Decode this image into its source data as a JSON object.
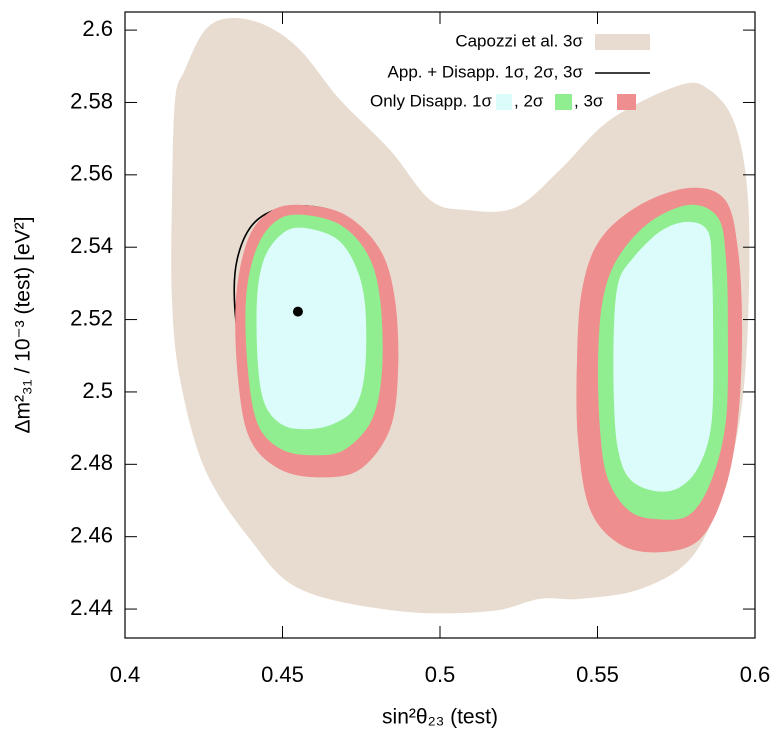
{
  "chart_data": {
    "type": "contour",
    "xlabel": "sin²θ₂₃ (test)",
    "ylabel": "Δm²₃₁ / 10⁻³ (test) [eV²]",
    "xlim": [
      0.4,
      0.6
    ],
    "ylim": [
      2.432,
      2.605
    ],
    "xticks": [
      0.4,
      0.45,
      0.5,
      0.55,
      0.6
    ],
    "yticks": [
      2.44,
      2.46,
      2.48,
      2.5,
      2.52,
      2.54,
      2.56,
      2.58,
      2.6
    ],
    "legend": "top-right",
    "series": [
      {
        "name": "Capozzi et al. 3σ",
        "color": "#e8dcd0",
        "kind": "area",
        "regions": [
          {
            "x": [
              0.4159,
              0.419,
              0.4254,
              0.4333,
              0.4444,
              0.4556,
              0.4683,
              0.4841,
              0.4968,
              0.5079,
              0.5238,
              0.5381,
              0.554,
              0.5762,
              0.5857,
              0.5937,
              0.5978,
              0.5978,
              0.5952,
              0.5889,
              0.5794,
              0.5635,
              0.5444,
              0.5317,
              0.5159,
              0.4873,
              0.4556,
              0.4397,
              0.4254,
              0.4175,
              0.4149,
              0.4149
            ],
            "y": [
              2.5807,
              2.589,
              2.6,
              2.6033,
              2.6014,
              2.5945,
              2.5807,
              2.5669,
              2.5531,
              2.5503,
              2.5509,
              2.5614,
              2.5752,
              2.5848,
              2.5834,
              2.5738,
              2.5531,
              2.52,
              2.4924,
              2.4703,
              2.4538,
              2.4455,
              2.4428,
              2.4428,
              2.4394,
              2.4394,
              2.4455,
              2.4593,
              2.4786,
              2.5034,
              2.5255,
              2.5531
            ]
          }
        ]
      },
      {
        "name": "App. + Disapp. 1σ, 2σ, 3σ",
        "color": "#000000",
        "kind": "line",
        "regions": [
          {
            "x": [
              0.4524,
              0.4667,
              0.4771,
              0.4819,
              0.4825,
              0.4784,
              0.4683,
              0.4556,
              0.4444,
              0.4381,
              0.4349,
              0.4356,
              0.4413
            ],
            "y": [
              2.5512,
              2.5498,
              2.5421,
              2.5283,
              2.5145,
              2.5021,
              2.4946,
              2.493,
              2.4966,
              2.5062,
              2.5228,
              2.5366,
              2.547
            ]
          },
          {
            "x": [
              0.454,
              0.4667,
              0.474,
              0.4771,
              0.4765,
              0.4721,
              0.4625,
              0.4524,
              0.4435,
              0.4397,
              0.439,
              0.4422,
              0.4476
            ],
            "y": [
              2.547,
              2.5448,
              2.5371,
              2.5255,
              2.5117,
              2.5021,
              2.4993,
              2.5007,
              2.5062,
              2.5172,
              2.531,
              2.5407,
              2.5454
            ]
          },
          {
            "x": [
              0.4556,
              0.4651,
              0.4708,
              0.473,
              0.4714,
              0.4667,
              0.4587,
              0.4508,
              0.4444,
              0.4413,
              0.4413,
              0.4444,
              0.4492
            ],
            "y": [
              2.5426,
              2.5404,
              2.5332,
              2.5228,
              2.5117,
              2.504,
              2.5021,
              2.504,
              2.5103,
              2.52,
              2.531,
              2.5379,
              2.5415
            ]
          }
        ]
      },
      {
        "name": ", 3σ",
        "color": "#ef8e8e",
        "kind": "area",
        "regions": [
          {
            "x": [
              0.4556,
              0.4698,
              0.481,
              0.4857,
              0.4867,
              0.4841,
              0.4746,
              0.4619,
              0.4492,
              0.4397,
              0.4359,
              0.4352,
              0.439,
              0.446
            ],
            "y": [
              2.5517,
              2.549,
              2.5393,
              2.5255,
              2.5062,
              2.4897,
              2.4786,
              2.4764,
              2.4786,
              2.4869,
              2.5034,
              2.5255,
              2.5421,
              2.5498
            ]
          },
          {
            "x": [
              0.5794,
              0.5905,
              0.5946,
              0.5959,
              0.5946,
              0.5905,
              0.5825,
              0.5698,
              0.5571,
              0.5476,
              0.5438,
              0.5435,
              0.5451,
              0.5508,
              0.5635
            ],
            "y": [
              2.5564,
              2.5531,
              2.5393,
              2.5172,
              2.4924,
              2.4731,
              2.4593,
              2.4557,
              2.4579,
              2.4676,
              2.4869,
              2.509,
              2.5283,
              2.5421,
              2.5517
            ]
          }
        ]
      },
      {
        "name": ", 2σ",
        "color": "#90ee90",
        "kind": "area",
        "regions": [
          {
            "x": [
              0.4556,
              0.4683,
              0.4771,
              0.481,
              0.4816,
              0.4784,
              0.4698,
              0.4603,
              0.4498,
              0.4422,
              0.439,
              0.4384,
              0.4416,
              0.4476
            ],
            "y": [
              2.549,
              2.5462,
              2.5379,
              2.5255,
              2.5062,
              2.4924,
              2.4841,
              2.4825,
              2.4841,
              2.491,
              2.5062,
              2.5255,
              2.5393,
              2.547
            ]
          },
          {
            "x": [
              0.5794,
              0.5883,
              0.5908,
              0.5914,
              0.5908,
              0.5863,
              0.5794,
              0.5698,
              0.5603,
              0.5533,
              0.5508,
              0.5502,
              0.5517,
              0.5565,
              0.5667
            ],
            "y": [
              2.5517,
              2.5481,
              2.5366,
              2.5172,
              2.4924,
              2.4759,
              2.4662,
              2.4648,
              2.467,
              2.4759,
              2.4897,
              2.509,
              2.5255,
              2.5371,
              2.547
            ]
          }
        ]
      },
      {
        "name": "Only Disapp. 1σ",
        "color": "#dcfcfc",
        "kind": "area",
        "regions": [
          {
            "x": [
              0.4556,
              0.4667,
              0.473,
              0.4762,
              0.4762,
              0.473,
              0.4657,
              0.4571,
              0.4498,
              0.4444,
              0.4422,
              0.4419,
              0.4441,
              0.4492
            ],
            "y": [
              2.5454,
              2.5426,
              2.5352,
              2.5241,
              2.5062,
              2.4957,
              2.491,
              2.4897,
              2.491,
              2.4966,
              2.5076,
              2.5255,
              2.5366,
              2.5432
            ]
          },
          {
            "x": [
              0.5787,
              0.5851,
              0.5863,
              0.5867,
              0.5863,
              0.5825,
              0.5762,
              0.5683,
              0.5603,
              0.5565,
              0.5552,
              0.5552,
              0.5565,
              0.5603,
              0.5698
            ],
            "y": [
              2.547,
              2.5443,
              2.5338,
              2.5172,
              2.4924,
              2.48,
              2.4737,
              2.4726,
              2.4759,
              2.4841,
              2.4979,
              2.5172,
              2.5297,
              2.536,
              2.5443
            ]
          }
        ]
      }
    ],
    "best_fit": {
      "x": 0.4549,
      "y": 2.5222
    }
  }
}
